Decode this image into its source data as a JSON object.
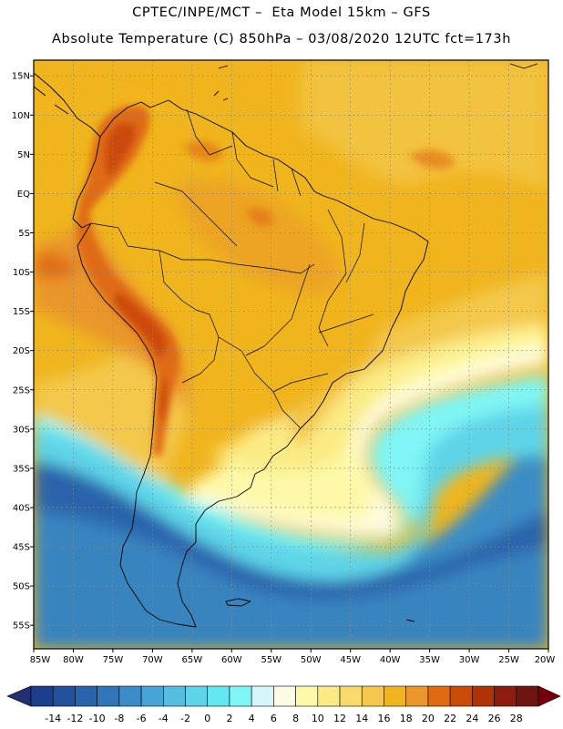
{
  "title": {
    "line1": "CPTEC/INPE/MCT –  Eta Model 15km – GFS",
    "line2": "Absolute Temperature (C) 850hPa – 03/08/2020 12UTC fct=173h"
  },
  "map": {
    "lon_range": [
      -85,
      -20
    ],
    "lat_range": [
      -58,
      17
    ],
    "lat_labels": [
      "15N",
      "10N",
      "5N",
      "EQ",
      "5S",
      "10S",
      "15S",
      "20S",
      "25S",
      "30S",
      "35S",
      "40S",
      "45S",
      "50S",
      "55S"
    ],
    "lat_values": [
      15,
      10,
      5,
      0,
      -5,
      -10,
      -15,
      -20,
      -25,
      -30,
      -35,
      -40,
      -45,
      -50,
      -55
    ],
    "lon_labels": [
      "85W",
      "80W",
      "75W",
      "70W",
      "65W",
      "60W",
      "55W",
      "50W",
      "45W",
      "40W",
      "35W",
      "30W",
      "25W",
      "20W"
    ],
    "lon_values": [
      -85,
      -80,
      -75,
      -70,
      -65,
      -60,
      -55,
      -50,
      -45,
      -40,
      -35,
      -30,
      -25,
      -20
    ]
  },
  "colorbar": {
    "levels": [
      "-14",
      "-12",
      "-10",
      "-8",
      "-6",
      "-4",
      "-2",
      "0",
      "2",
      "4",
      "6",
      "8",
      "10",
      "12",
      "14",
      "16",
      "18",
      "20",
      "22",
      "24",
      "26",
      "28"
    ],
    "colors": [
      "#1c3f8c",
      "#23519b",
      "#2a64ab",
      "#2f77b8",
      "#3a8dc6",
      "#48a4d4",
      "#55bde0",
      "#5dd4e8",
      "#64e8f0",
      "#7ff5f5",
      "#d6f7fa",
      "#fdfbe3",
      "#fdf9a8",
      "#fbeb85",
      "#f8db6a",
      "#f3c84b",
      "#f0b51e",
      "#e9962a",
      "#df6a12",
      "#cc4a08",
      "#ae3305",
      "#8c1c0e",
      "#6e1512"
    ],
    "low_cap": "#202f6e",
    "high_cap": "#75000c"
  },
  "field_colors": {
    "ocean_deep": "#2a64ab",
    "ocean_mid": "#3a8dc6",
    "ocean_light": "#48a4d4",
    "cyan": "#5dd4e8",
    "cyan_light": "#7ff5f5",
    "pale": "#fdfbe3",
    "yellow": "#fdf9a8",
    "yellow2": "#fbeb85",
    "gold": "#f3c84b",
    "orange": "#f0b51e",
    "dark_orange": "#e9962a",
    "red": "#df6a12",
    "dark_red": "#cc4a08"
  }
}
